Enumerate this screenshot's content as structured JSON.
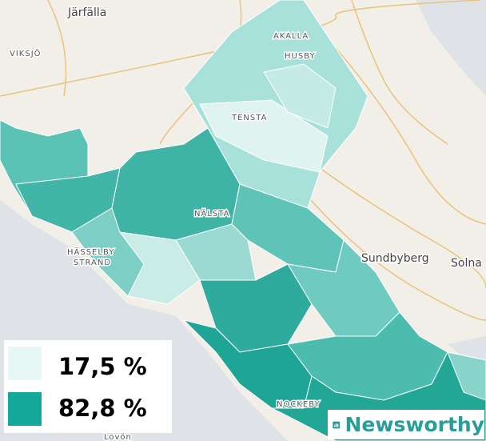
{
  "places": [
    "Järfälla",
    "VIKSJÖ",
    "AKALLA",
    "HUSBY",
    "TENSTA",
    "NÄLSTA",
    "HÄSSELBY",
    "STRAND",
    "Sundbyberg",
    "Solna",
    "NOCKEBY",
    "Lovön"
  ],
  "legend": [
    {
      "label": "17,5 %",
      "color": "#e6f7f5"
    },
    {
      "label": "82,8 %",
      "color": "#14a89a"
    }
  ],
  "brand": "Newsworthy"
}
